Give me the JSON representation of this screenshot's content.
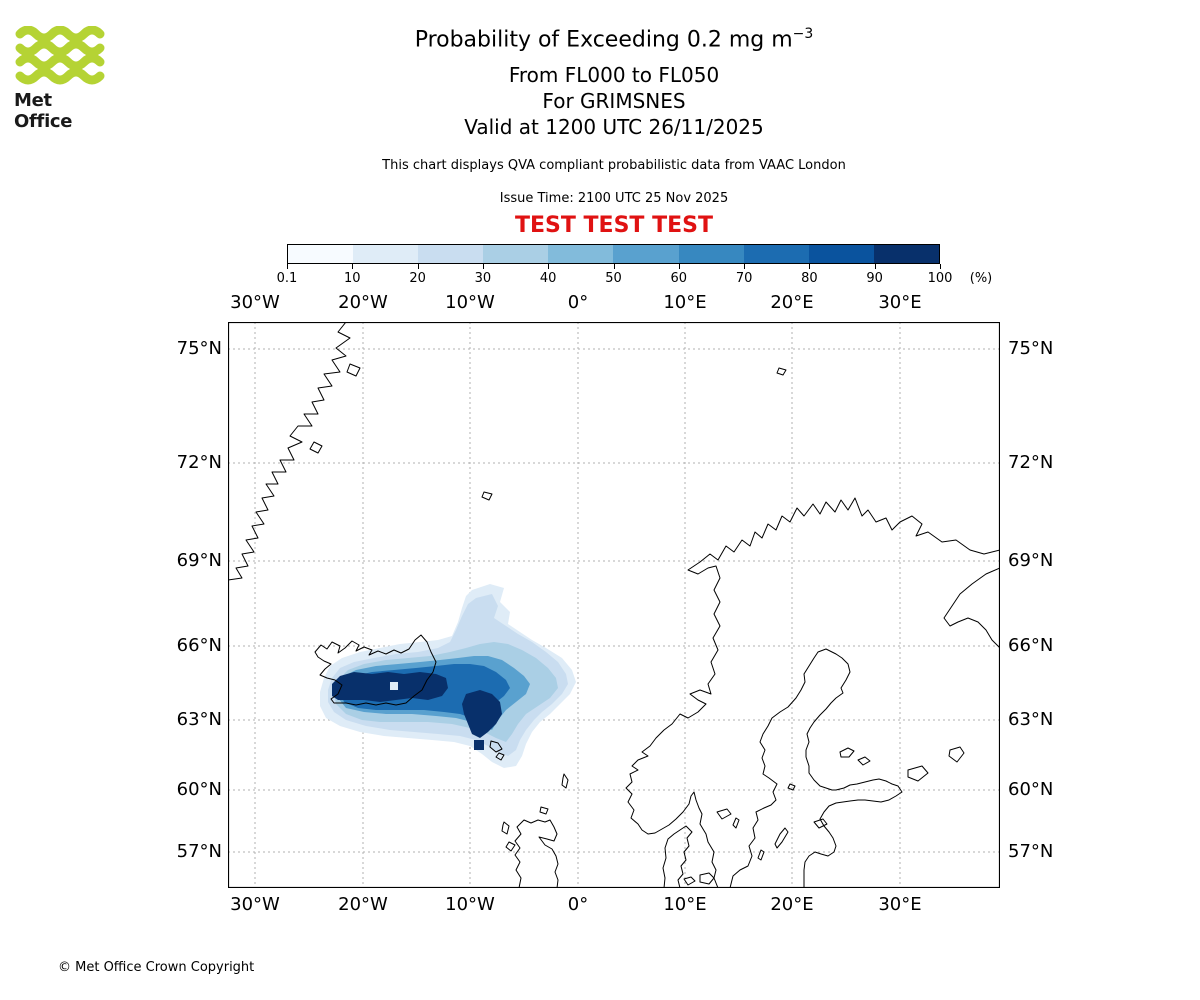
{
  "colors": {
    "logo_green": "#b5d334",
    "test_red": "#e01212",
    "coastline": "#000000",
    "grid_gray": "#b0b0b0"
  },
  "logo": {
    "text": "Met Office"
  },
  "header": {
    "title_main": "Probability of Exceeding 0.2 mg m",
    "title_sup": "−3",
    "line_flight_levels": "From FL000 to FL050",
    "line_location": "For GRIMSNES",
    "line_valid": "Valid at 1200 UTC 26/11/2025",
    "description": "This chart displays QVA compliant probabilistic data from VAAC London",
    "issue_time": "Issue Time: 2100 UTC 25 Nov 2025",
    "test_banner": "TEST TEST TEST"
  },
  "colorbar": {
    "ticks": [
      "0.1",
      "10",
      "20",
      "30",
      "40",
      "50",
      "60",
      "70",
      "80",
      "90",
      "100"
    ],
    "unit": "(%)",
    "colors": [
      "#f7fbff",
      "#dfecf7",
      "#c9ddf0",
      "#aacfe5",
      "#82bbdb",
      "#59a1cf",
      "#3788c0",
      "#1c6cb1",
      "#0a539e",
      "#08306b"
    ]
  },
  "map": {
    "lon_labels": [
      "30°W",
      "20°W",
      "10°W",
      "0°",
      "10°E",
      "20°E",
      "30°E"
    ],
    "lat_labels": [
      "75°N",
      "72°N",
      "69°N",
      "66°N",
      "63°N",
      "60°N",
      "57°N"
    ]
  },
  "footer": {
    "copyright": "© Met Office Crown Copyright"
  },
  "chart_data": {
    "type": "heatmap",
    "title": "Probability of Exceeding 0.2 mg m-3, FL000 to FL050, for GRIMSNES, valid 1200 UTC 26/11/2025",
    "colorbar_percent_levels": [
      0.1,
      10,
      20,
      30,
      40,
      50,
      60,
      70,
      80,
      90,
      100
    ],
    "colorbar_unit": "%",
    "projection": "mercator",
    "map_extent": {
      "lon_min": -32.5,
      "lon_max": 39,
      "lat_min": 55.2,
      "lat_max": 75.9
    },
    "lon_gridlines_deg": [
      -30,
      -20,
      -10,
      0,
      10,
      20,
      30
    ],
    "lat_gridlines_deg": [
      75,
      72,
      69,
      66,
      63,
      60,
      57
    ],
    "plume": {
      "description": "Volcanic ash exceedance-probability plume centred over and east of Iceland, with a light lobe extending north-east near 10W and a tail south-east toward 62N",
      "approx_extent": {
        "lon_min": -23,
        "lon_max": -1,
        "lat_min": 61.5,
        "lat_max": 67
      },
      "max_band_percent": "90-100",
      "max_location_approx": {
        "lat": 64.5,
        "lon": -18
      }
    }
  }
}
